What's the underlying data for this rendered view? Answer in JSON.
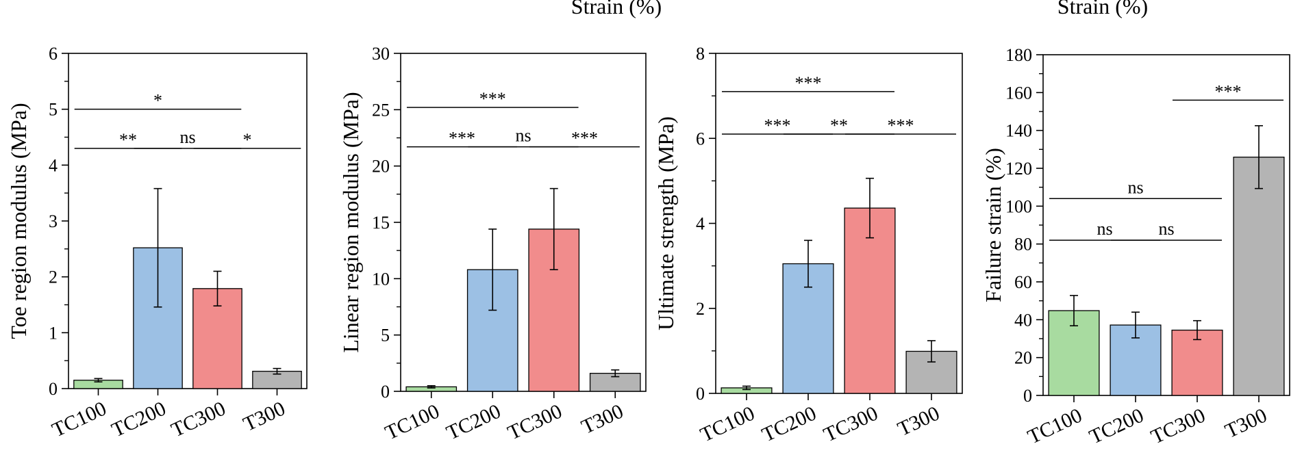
{
  "top_labels": [
    "Strain (%)",
    "Strain (%)"
  ],
  "colors": {
    "TC100": "#a8dba0",
    "TC200": "#9cc0e4",
    "TC300": "#f18c8c",
    "T300": "#b4b4b4"
  },
  "chart_data": [
    {
      "type": "bar",
      "title": "",
      "xlabel": "",
      "ylabel": "Toe region modulus (MPa)",
      "ylim": [
        0,
        6
      ],
      "yticks": [
        0,
        1,
        2,
        3,
        4,
        5,
        6
      ],
      "categories": [
        "TC100",
        "TC200",
        "TC300",
        "T300"
      ],
      "values": [
        0.15,
        2.52,
        1.79,
        0.31
      ],
      "errors": [
        0.03,
        1.06,
        0.31,
        0.05
      ],
      "significance": [
        {
          "from": 0,
          "to": 2,
          "label": "*",
          "level": 5.0
        },
        {
          "from": 0,
          "to": 1,
          "label": "**",
          "level": 4.3
        },
        {
          "from": 1,
          "to": 2,
          "label": "ns",
          "level": 4.3
        },
        {
          "from": 2,
          "to": 3,
          "label": "*",
          "level": 4.3
        }
      ]
    },
    {
      "type": "bar",
      "title": "",
      "xlabel": "",
      "ylabel": "Linear region modulus (MPa)",
      "ylim": [
        0,
        30
      ],
      "yticks": [
        0,
        5,
        10,
        15,
        20,
        25,
        30
      ],
      "categories": [
        "TC100",
        "TC200",
        "TC300",
        "T300"
      ],
      "values": [
        0.4,
        10.8,
        14.4,
        1.6
      ],
      "errors": [
        0.1,
        3.6,
        3.6,
        0.3
      ],
      "significance": [
        {
          "from": 0,
          "to": 2,
          "label": "***",
          "level": 25.2
        },
        {
          "from": 0,
          "to": 1,
          "label": "***",
          "level": 21.7
        },
        {
          "from": 1,
          "to": 2,
          "label": "ns",
          "level": 21.7
        },
        {
          "from": 2,
          "to": 3,
          "label": "***",
          "level": 21.7
        }
      ]
    },
    {
      "type": "bar",
      "title": "",
      "xlabel": "",
      "ylabel": "Ultimate strength (MPa)",
      "ylim": [
        0,
        8
      ],
      "yticks": [
        0,
        2,
        4,
        6,
        8
      ],
      "categories": [
        "TC100",
        "TC200",
        "TC300",
        "T300"
      ],
      "values": [
        0.13,
        3.05,
        4.36,
        0.99
      ],
      "errors": [
        0.04,
        0.55,
        0.7,
        0.25
      ],
      "significance": [
        {
          "from": 0,
          "to": 2,
          "label": "***",
          "level": 7.1
        },
        {
          "from": 0,
          "to": 1,
          "label": "***",
          "level": 6.1
        },
        {
          "from": 1,
          "to": 2,
          "label": "**",
          "level": 6.1
        },
        {
          "from": 2,
          "to": 3,
          "label": "***",
          "level": 6.1
        }
      ]
    },
    {
      "type": "bar",
      "title": "",
      "xlabel": "",
      "ylabel": "Failure strain (%)",
      "ylim": [
        0,
        180
      ],
      "yticks": [
        0,
        20,
        40,
        60,
        80,
        100,
        120,
        140,
        160,
        180
      ],
      "categories": [
        "TC100",
        "TC200",
        "TC300",
        "T300"
      ],
      "values": [
        44.8,
        37.2,
        34.5,
        125.9
      ],
      "errors": [
        8.0,
        6.8,
        5.0,
        16.6
      ],
      "significance": [
        {
          "from": 2,
          "to": 3,
          "label": "***",
          "level": 156
        },
        {
          "from": 0,
          "to": 2,
          "label": "ns",
          "level": 104
        },
        {
          "from": 0,
          "to": 1,
          "label": "ns",
          "level": 82
        },
        {
          "from": 1,
          "to": 2,
          "label": "ns",
          "level": 82
        }
      ]
    }
  ]
}
